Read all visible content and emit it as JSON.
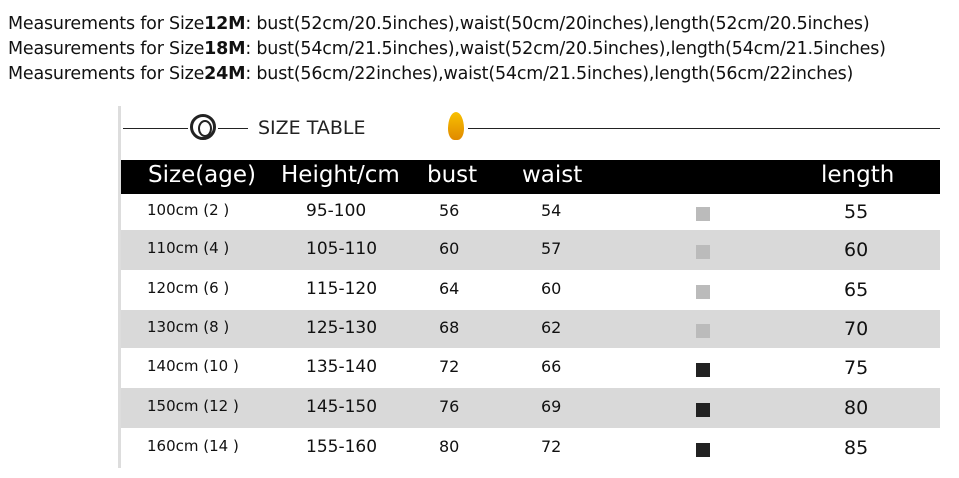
{
  "measurements": [
    {
      "prefix": "Measurements for Size",
      "size": "12M",
      "details": ": bust(52cm/20.5inches),waist(50cm/20inches),length(52cm/20.5inches)"
    },
    {
      "prefix": "Measurements for Size",
      "size": "18M",
      "details": ": bust(54cm/21.5inches),waist(52cm/20.5inches),length(54cm/21.5inches)"
    },
    {
      "prefix": "Measurements for Size",
      "size": "24M",
      "details": ": bust(56cm/22inches),waist(54cm/21.5inches),length(56cm/22inches)"
    }
  ],
  "table": {
    "title": "SIZE TABLE",
    "headers": [
      "Size(age)",
      "Height/cm",
      "bust",
      "waist",
      "length"
    ],
    "rows": [
      [
        "100cm (2 )",
        "95-100",
        "56",
        "54",
        "55"
      ],
      [
        "110cm (4 )",
        "105-110",
        "60",
        "57",
        "60"
      ],
      [
        "120cm (6 )",
        "115-120",
        "64",
        "60",
        "65"
      ],
      [
        "130cm (8 )",
        "125-130",
        "68",
        "62",
        "70"
      ],
      [
        "140cm (10 )",
        "135-140",
        "72",
        "66",
        "75"
      ],
      [
        "150cm (12 )",
        "145-150",
        "76",
        "69",
        "80"
      ],
      [
        "160cm (14 )",
        "155-160",
        "80",
        "72",
        "85"
      ]
    ],
    "colors": {
      "header_bg": "#000000",
      "stripe": "#d9d9d9",
      "flame": "#f8c000"
    }
  }
}
